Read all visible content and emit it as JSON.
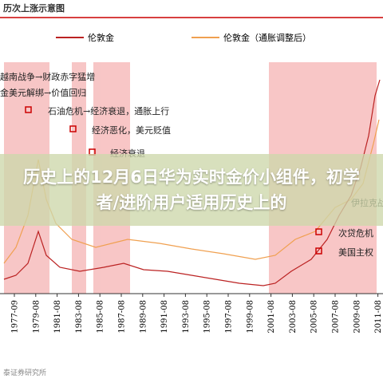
{
  "header": {
    "title": "历次上涨示意图"
  },
  "legend": [
    "伦敦金",
    "伦敦金（通胀调整后）"
  ],
  "annotations": [
    "越南战争→财政赤字猛增",
    "金美元解绑→价值回归",
    "石油危机→经济衰退，通胀上行",
    "经济恶化，美元贬值",
    "经济衰退",
    "伊拉克战",
    "次贷危机",
    "美国主权"
  ],
  "x_labels": [
    "1977-09",
    "1979-08",
    "1981-08",
    "1983-08",
    "1985-08",
    "1987-08",
    "1989-08",
    "1991-08",
    "1993-08",
    "1995-08",
    "1997-08",
    "1999-08",
    "2001-08",
    "2003-08",
    "2005-08",
    "2007-08",
    "2009-08",
    "2011-08"
  ],
  "overlay_title": "历史上的12月6日华为实时金价小组件，初学者/进阶用户适用历史上的",
  "source": "泰证券研究所"
}
